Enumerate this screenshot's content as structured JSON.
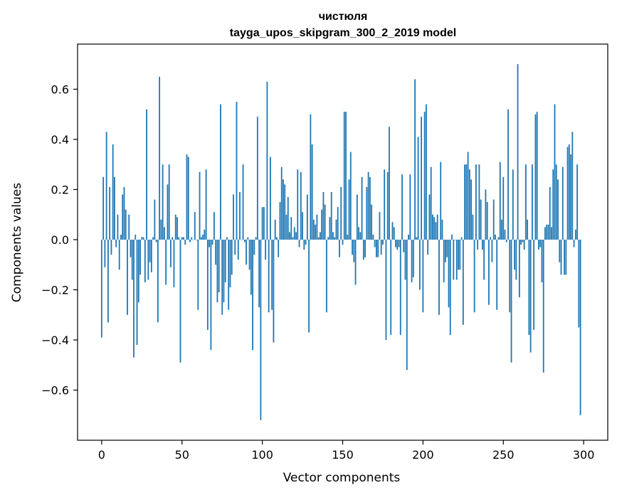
{
  "chart_data": {
    "type": "bar",
    "title": "чистюля",
    "subtitle": "tayga_upos_skipgram_300_2_2019 model",
    "xlabel": "Vector components",
    "ylabel": "Components values",
    "xlim": [
      -15,
      315
    ],
    "ylim": [
      -0.8,
      0.78
    ],
    "xticks": [
      0,
      50,
      100,
      150,
      200,
      250,
      300
    ],
    "xtick_labels": [
      "0",
      "50",
      "100",
      "150",
      "200",
      "250",
      "300"
    ],
    "yticks": [
      -0.6,
      -0.4,
      -0.2,
      0.0,
      0.2,
      0.4,
      0.6
    ],
    "ytick_labels": [
      "−0.6",
      "−0.4",
      "−0.2",
      "0.0",
      "0.2",
      "0.4",
      "0.6"
    ],
    "bar_color": "#1f77b4",
    "grid": false,
    "x": "0..299",
    "values": [
      -0.39,
      0.25,
      -0.11,
      0.43,
      -0.33,
      0.21,
      -0.06,
      0.38,
      0.25,
      -0.03,
      0.1,
      -0.12,
      0.02,
      0.18,
      0.21,
      0.12,
      -0.3,
      0.1,
      -0.07,
      -0.16,
      -0.47,
      0.02,
      -0.42,
      -0.25,
      -0.14,
      0.01,
      0.01,
      -0.17,
      0.52,
      -0.16,
      -0.09,
      -0.13,
      0.01,
      0.16,
      -0.01,
      -0.33,
      0.65,
      0.08,
      0.3,
      0.05,
      -0.18,
      0.22,
      0.3,
      -0.11,
      0.01,
      -0.19,
      0.1,
      0.09,
      0.01,
      -0.49,
      0.01,
      0.01,
      -0.02,
      0.34,
      0.33,
      -0.01,
      0.01,
      0.0,
      0.11,
      0.0,
      -0.28,
      0.27,
      0.01,
      0.02,
      0.04,
      0.28,
      -0.36,
      -0.03,
      -0.44,
      -0.02,
      0.11,
      -0.1,
      -0.25,
      -0.21,
      0.54,
      -0.3,
      -0.25,
      -0.17,
      0.01,
      -0.28,
      -0.19,
      -0.14,
      0.18,
      -0.06,
      0.55,
      -0.08,
      0.19,
      0.0,
      0.3,
      -0.01,
      -0.1,
      0.01,
      -0.12,
      -0.22,
      -0.44,
      -0.06,
      0.01,
      0.49,
      -0.27,
      -0.72,
      0.13,
      0.13,
      -0.08,
      0.63,
      -0.29,
      0.33,
      -0.28,
      -0.41,
      0.08,
      0.01,
      -0.07,
      0.15,
      0.29,
      0.24,
      0.22,
      0.1,
      0.17,
      0.03,
      0.09,
      0.01,
      0.05,
      0.03,
      0.28,
      -0.03,
      0.27,
      0.11,
      -0.04,
      -0.02,
      0.18,
      -0.37,
      0.5,
      0.38,
      0.08,
      0.06,
      0.1,
      0.01,
      0.03,
      0.12,
      0.19,
      0.14,
      -0.29,
      0.01,
      0.09,
      0.19,
      0.03,
      0.01,
      0.08,
      0.13,
      -0.07,
      0.21,
      -0.02,
      0.51,
      0.51,
      0.02,
      0.24,
      0.35,
      -0.06,
      -0.09,
      -0.18,
      0.18,
      0.05,
      0.03,
      0.25,
      -0.08,
      -0.07,
      0.21,
      0.27,
      0.25,
      0.14,
      0.02,
      -0.03,
      -0.07,
      -0.07,
      0.11,
      -0.06,
      -0.02,
      0.28,
      -0.4,
      0.27,
      0.45,
      -0.38,
      0.07,
      0.05,
      -0.03,
      -0.04,
      -0.03,
      -0.38,
      0.26,
      -0.05,
      -0.16,
      -0.52,
      0.02,
      0.26,
      -0.17,
      -0.15,
      0.64,
      0.01,
      0.41,
      -0.2,
      0.49,
      -0.29,
      0.51,
      0.54,
      -0.06,
      0.18,
      0.29,
      0.1,
      0.09,
      0.07,
      0.1,
      -0.3,
      0.31,
      0.08,
      -0.17,
      -0.09,
      -0.07,
      -0.27,
      -0.38,
      0.02,
      -0.16,
      0.0,
      -0.16,
      -0.12,
      -0.12,
      0.01,
      -0.34,
      0.3,
      0.3,
      0.35,
      0.28,
      0.24,
      0.1,
      -0.29,
      0.3,
      -0.04,
      0.3,
      0.16,
      -0.04,
      -0.16,
      0.2,
      0.15,
      -0.26,
      0.01,
      -0.09,
      0.16,
      0.02,
      -0.28,
      0.01,
      0.31,
      0.08,
      0.25,
      0.04,
      -0.01,
      0.52,
      -0.29,
      -0.49,
      0.28,
      -0.12,
      -0.16,
      0.7,
      -0.23,
      -0.02,
      -0.01,
      -0.04,
      0.3,
      0.08,
      -0.38,
      -0.45,
      0.3,
      -0.36,
      0.5,
      0.51,
      -0.04,
      -0.03,
      -0.17,
      -0.53,
      0.05,
      0.06,
      0.06,
      0.21,
      0.05,
      0.28,
      0.54,
      0.3,
      0.24,
      -0.09,
      -0.14,
      0.29,
      -0.14,
      -0.14,
      0.37,
      0.38,
      0.34,
      0.43,
      -0.03,
      0.04,
      0.3,
      -0.35,
      -0.7
    ]
  }
}
